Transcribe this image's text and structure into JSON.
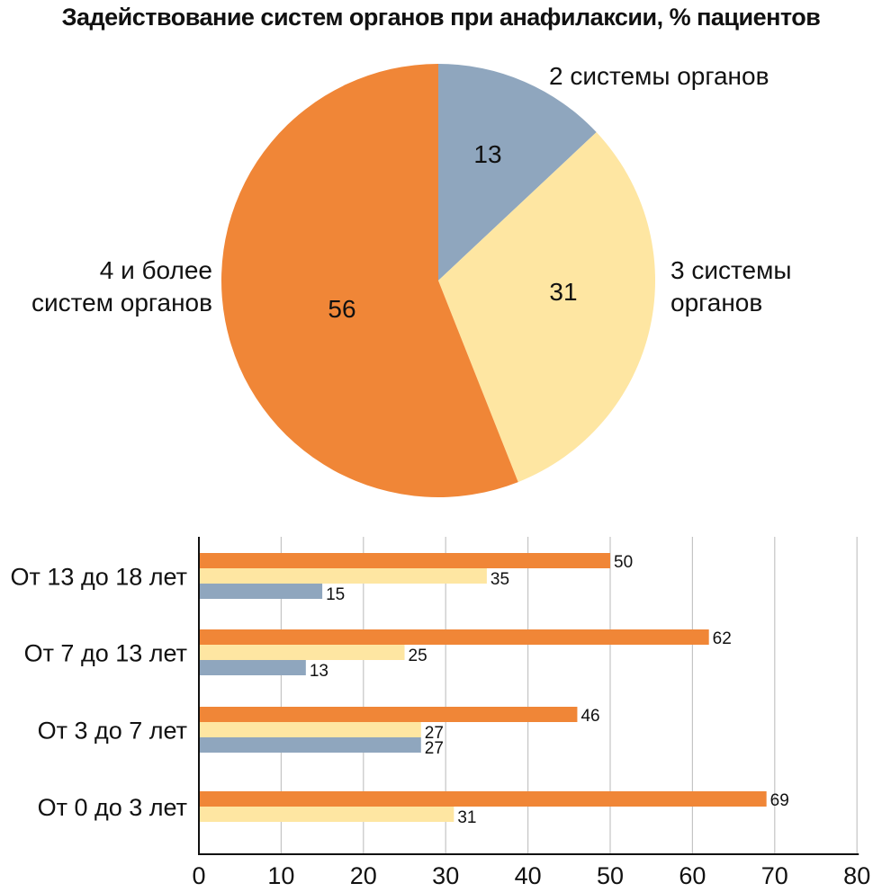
{
  "chart_data": [
    {
      "type": "pie",
      "title": "Задействование систем органов при анафилаксии, % пациентов",
      "slices": [
        {
          "name": "2 системы органов",
          "label_lines": [
            "2 системы органов"
          ],
          "value": 13,
          "color": "#8fa6be"
        },
        {
          "name": "3 системы органов",
          "label_lines": [
            "3 системы",
            "органов"
          ],
          "value": 31,
          "color": "#fee6a2"
        },
        {
          "name": "4 и более систем органов",
          "label_lines": [
            "4 и более",
            "систем органов"
          ],
          "value": 56,
          "color": "#f08637"
        }
      ]
    },
    {
      "type": "bar",
      "orientation": "horizontal",
      "categories": [
        "От 13 до 18 лет",
        "От 7 до 13 лет",
        "От 3 до 7 лет",
        "От 0 до 3 лет"
      ],
      "series": [
        {
          "name": "4 и более систем органов",
          "color": "#f08637",
          "values": [
            50,
            62,
            46,
            69
          ]
        },
        {
          "name": "3 системы органов",
          "color": "#fee6a2",
          "values": [
            35,
            25,
            27,
            31
          ]
        },
        {
          "name": "2 системы органов",
          "color": "#8fa6be",
          "values": [
            15,
            13,
            27,
            null
          ]
        }
      ],
      "xlim": [
        0,
        80
      ],
      "xticks": [
        0,
        10,
        20,
        30,
        40,
        50,
        60,
        70,
        80
      ],
      "grid": true
    }
  ]
}
